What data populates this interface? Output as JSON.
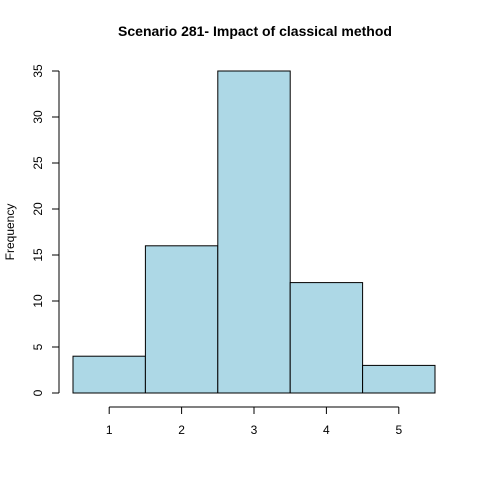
{
  "chart_data": {
    "type": "bar",
    "title": "Scenario 281- Impact of classical method",
    "xlabel": "",
    "ylabel": "Frequency",
    "categories": [
      "1",
      "2",
      "3",
      "4",
      "5"
    ],
    "values": [
      4,
      16,
      35,
      12,
      3
    ],
    "ylim": [
      0,
      35
    ],
    "yticks": [
      "0",
      "5",
      "10",
      "15",
      "20",
      "25",
      "30",
      "35"
    ],
    "bar_color": "#add8e6",
    "grid": false,
    "legend": "none"
  }
}
